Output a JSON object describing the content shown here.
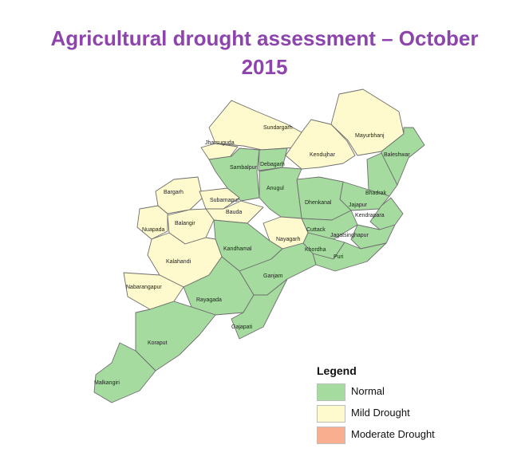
{
  "title": {
    "line1": "Agricultural  drought assessment – October",
    "line2": "2015"
  },
  "colors": {
    "normal": "#a6dba0",
    "mild_drought": "#fffacd",
    "moderate_drought": "#f9ae8f",
    "boundary": "#6e6e6e"
  },
  "districts": [
    {
      "name": "Sundargarh",
      "status": "mild_drought"
    },
    {
      "name": "Jharsuguda",
      "status": "mild_drought"
    },
    {
      "name": "Sambalpur",
      "status": "normal"
    },
    {
      "name": "Debagarh",
      "status": "normal"
    },
    {
      "name": "Kendujhar",
      "status": "mild_drought"
    },
    {
      "name": "Mayurbhanj",
      "status": "mild_drought"
    },
    {
      "name": "Baleshwar",
      "status": "normal"
    },
    {
      "name": "Bhadrak",
      "status": "normal"
    },
    {
      "name": "Jajapur",
      "status": "normal"
    },
    {
      "name": "Kendrapara",
      "status": "normal"
    },
    {
      "name": "Dhenkanal",
      "status": "normal"
    },
    {
      "name": "Anugul",
      "status": "normal"
    },
    {
      "name": "Bargarh",
      "status": "mild_drought"
    },
    {
      "name": "Subarnapur",
      "status": "mild_drought"
    },
    {
      "name": "Bauda",
      "status": "mild_drought"
    },
    {
      "name": "Balangir",
      "status": "mild_drought"
    },
    {
      "name": "Nuapada",
      "status": "mild_drought"
    },
    {
      "name": "Cuttack",
      "status": "normal"
    },
    {
      "name": "Jagatsinghapur",
      "status": "normal"
    },
    {
      "name": "Khordha",
      "status": "normal"
    },
    {
      "name": "Puri",
      "status": "normal"
    },
    {
      "name": "Nayagarh",
      "status": "mild_drought"
    },
    {
      "name": "Kandhamal",
      "status": "normal"
    },
    {
      "name": "Ganjam",
      "status": "normal"
    },
    {
      "name": "Kalahandi",
      "status": "mild_drought"
    },
    {
      "name": "Nabarangapur",
      "status": "mild_drought"
    },
    {
      "name": "Rayagada",
      "status": "normal"
    },
    {
      "name": "Gajapati",
      "status": "normal"
    },
    {
      "name": "Koraput",
      "status": "normal"
    },
    {
      "name": "Malkangiri",
      "status": "normal"
    }
  ],
  "legend": {
    "title": "Legend",
    "items": [
      {
        "label": "Normal",
        "color": "#a6dba0"
      },
      {
        "label": "Mild Drought",
        "color": "#fffacd"
      },
      {
        "label": "Moderate Drought",
        "color": "#f9ae8f"
      }
    ]
  }
}
